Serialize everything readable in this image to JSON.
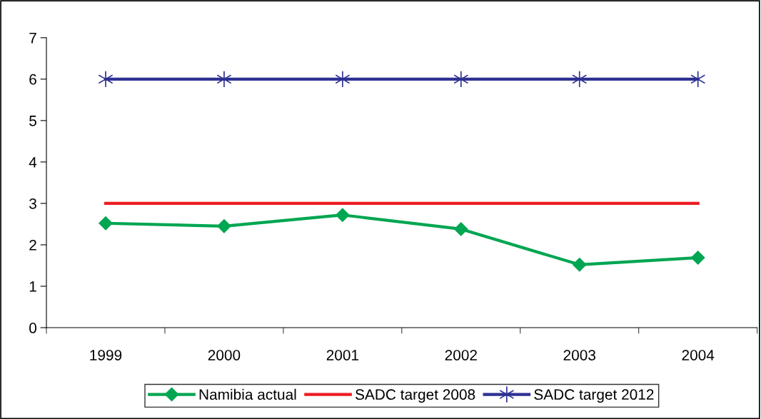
{
  "chart_data": {
    "type": "line",
    "categories": [
      "1999",
      "2000",
      "2001",
      "2002",
      "2003",
      "2004"
    ],
    "series": [
      {
        "name": "Namibia actual",
        "color": "#00a651",
        "marker": "diamond",
        "values": [
          2.52,
          2.45,
          2.72,
          2.38,
          1.52,
          1.69
        ]
      },
      {
        "name": "SADC target 2008",
        "color": "#ed1c24",
        "marker": "none",
        "values": [
          3,
          3,
          3,
          3,
          3,
          3
        ]
      },
      {
        "name": "SADC target 2012",
        "color": "#2e3192",
        "marker": "cross",
        "values": [
          6,
          6,
          6,
          6,
          6,
          6
        ]
      }
    ],
    "ylim": [
      0,
      7
    ],
    "yticks": [
      0,
      1,
      2,
      3,
      4,
      5,
      6,
      7
    ],
    "grid": false,
    "legend": "bottom",
    "line_style": "solid"
  }
}
